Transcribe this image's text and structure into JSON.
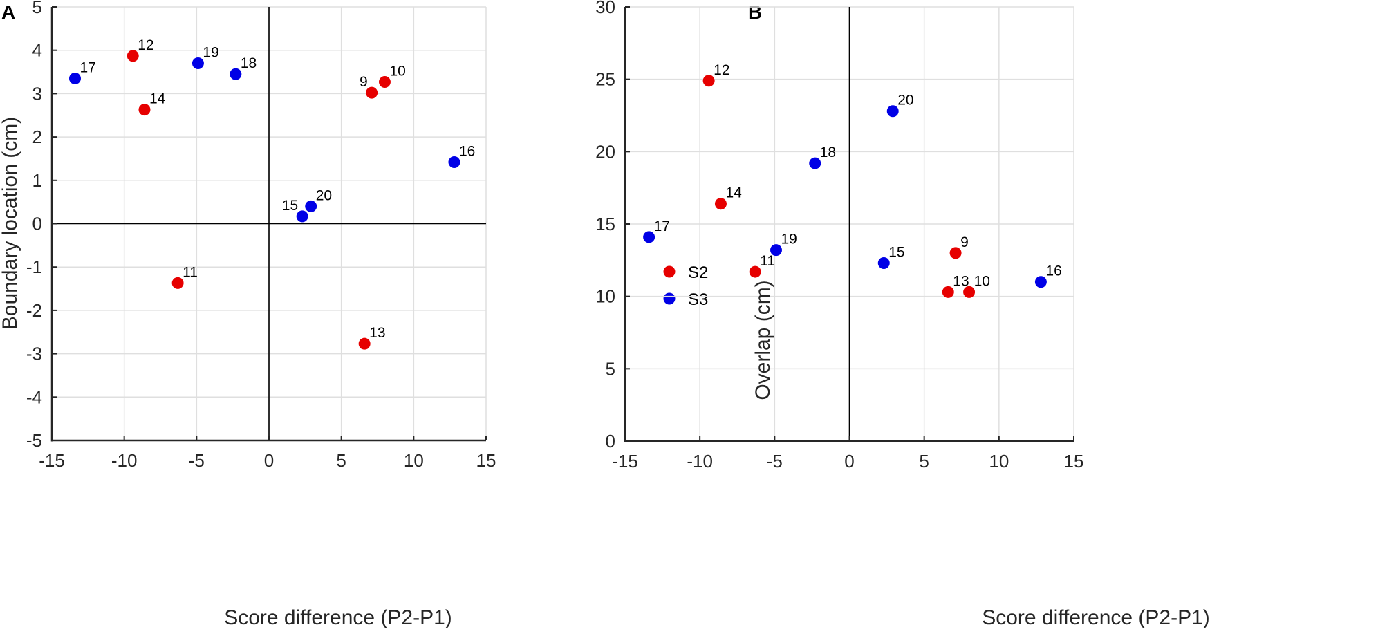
{
  "legend": [
    {
      "name": "S2",
      "color": "#e60000"
    },
    {
      "name": "S3",
      "color": "#0000e6"
    }
  ],
  "chart_data": [
    {
      "type": "scatter",
      "panel": "A",
      "xlabel": "Score difference (P2-P1)",
      "ylabel": "Boundary location (cm)",
      "xlim": [
        -15,
        15
      ],
      "ylim": [
        -5,
        5
      ],
      "xticks": [
        -15,
        -10,
        -5,
        0,
        5,
        10,
        15
      ],
      "yticks": [
        -5,
        -4,
        -3,
        -2,
        -1,
        0,
        1,
        2,
        3,
        4,
        5
      ],
      "grid": true,
      "zero_lines": true,
      "points": [
        {
          "id": "12",
          "x": -9.4,
          "y": 3.87,
          "series": "S2",
          "label_pos": "upper-right"
        },
        {
          "id": "14",
          "x": -8.6,
          "y": 2.63,
          "series": "S2",
          "label_pos": "upper-right"
        },
        {
          "id": "11",
          "x": -6.3,
          "y": -1.37,
          "series": "S2",
          "label_pos": "upper-right"
        },
        {
          "id": "9",
          "x": 7.1,
          "y": 3.02,
          "series": "S2",
          "label_pos": "upper-left"
        },
        {
          "id": "10",
          "x": 8.0,
          "y": 3.27,
          "series": "S2",
          "label_pos": "upper-right"
        },
        {
          "id": "13",
          "x": 6.6,
          "y": -2.77,
          "series": "S2",
          "label_pos": "upper-right"
        },
        {
          "id": "17",
          "x": -13.4,
          "y": 3.35,
          "series": "S3",
          "label_pos": "upper-right"
        },
        {
          "id": "19",
          "x": -4.9,
          "y": 3.7,
          "series": "S3",
          "label_pos": "upper-right"
        },
        {
          "id": "18",
          "x": -2.3,
          "y": 3.45,
          "series": "S3",
          "label_pos": "upper-right"
        },
        {
          "id": "15",
          "x": 2.3,
          "y": 0.17,
          "series": "S3",
          "label_pos": "upper-left"
        },
        {
          "id": "20",
          "x": 2.9,
          "y": 0.4,
          "series": "S3",
          "label_pos": "upper-right"
        },
        {
          "id": "16",
          "x": 12.8,
          "y": 1.42,
          "series": "S3",
          "label_pos": "upper-right"
        }
      ]
    },
    {
      "type": "scatter",
      "panel": "B",
      "xlabel": "Score difference (P2-P1)",
      "ylabel": "Overlap (cm)",
      "xlim": [
        -15,
        15
      ],
      "ylim": [
        0,
        30
      ],
      "xticks": [
        -15,
        -10,
        -5,
        0,
        5,
        10,
        15
      ],
      "yticks": [
        0,
        5,
        10,
        15,
        20,
        25,
        30
      ],
      "grid": true,
      "zero_lines": true,
      "points": [
        {
          "id": "12",
          "x": -9.4,
          "y": 24.9,
          "series": "S2",
          "label_pos": "upper-right"
        },
        {
          "id": "14",
          "x": -8.6,
          "y": 16.4,
          "series": "S2",
          "label_pos": "upper-right"
        },
        {
          "id": "11",
          "x": -6.3,
          "y": 11.7,
          "series": "S2",
          "label_pos": "upper-right"
        },
        {
          "id": "9",
          "x": 7.1,
          "y": 13.0,
          "series": "S2",
          "label_pos": "upper-right"
        },
        {
          "id": "13",
          "x": 6.6,
          "y": 10.3,
          "series": "S2",
          "label_pos": "upper-right"
        },
        {
          "id": "10",
          "x": 8.0,
          "y": 10.3,
          "series": "S2",
          "label_pos": "upper-right"
        },
        {
          "id": "17",
          "x": -13.4,
          "y": 14.1,
          "series": "S3",
          "label_pos": "upper-right"
        },
        {
          "id": "19",
          "x": -4.9,
          "y": 13.2,
          "series": "S3",
          "label_pos": "upper-right"
        },
        {
          "id": "18",
          "x": -2.3,
          "y": 19.2,
          "series": "S3",
          "label_pos": "upper-right"
        },
        {
          "id": "20",
          "x": 2.9,
          "y": 22.8,
          "series": "S3",
          "label_pos": "upper-right"
        },
        {
          "id": "15",
          "x": 2.3,
          "y": 12.3,
          "series": "S3",
          "label_pos": "upper-right"
        },
        {
          "id": "16",
          "x": 12.8,
          "y": 11.0,
          "series": "S3",
          "label_pos": "upper-right"
        }
      ]
    }
  ]
}
